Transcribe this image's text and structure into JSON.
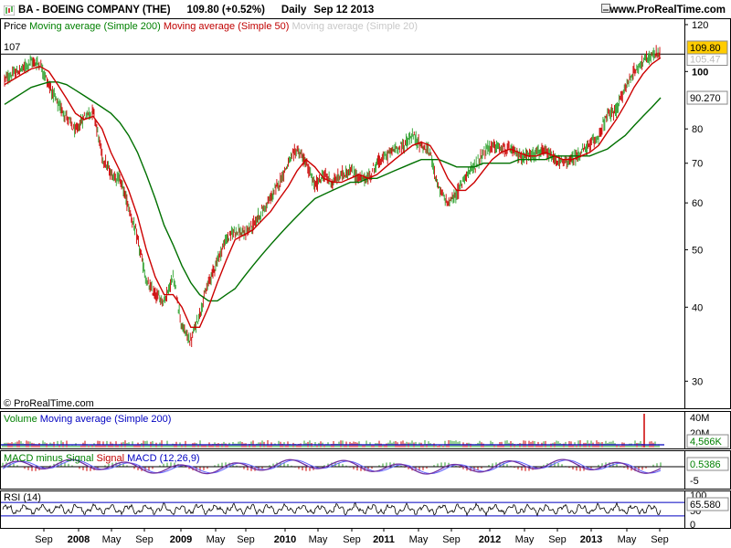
{
  "header": {
    "symbol_title": "BA - BOEING COMPANY (THE)",
    "price_change": "109.80 (+0.52%)",
    "period": "Daily",
    "date": "Sep 12 2013",
    "site": "www.ProRealTime.com"
  },
  "legends": {
    "price": "Price",
    "ma200": "Moving average (Simple 200)",
    "ma50": "Moving average (Simple 50)",
    "ma20": "Moving average (Simple 20)",
    "volume": "Volume",
    "volume_ma": "Moving average (Simple 200)",
    "macd_a": "MACD minus Signal",
    "macd_b": "Signal",
    "macd_c": "MACD (12,26,9)",
    "rsi": "RSI (14)"
  },
  "copyright": "© ProRealTime.com",
  "colors": {
    "up_bar": "#2ca02c",
    "down_bar": "#cc0000",
    "ma50": "#cc0000",
    "ma200": "#007000",
    "volume_ma": "#0000c0",
    "macd": "#7030a0",
    "signal": "#6060ff",
    "rsi": "#000000",
    "price_tag": "#ffcc00"
  },
  "chart_data": [
    {
      "type": "ohlc",
      "name": "price",
      "y_scale": "log",
      "ylim": [
        27,
        123
      ],
      "y_ticks": [
        "120",
        "100",
        "80",
        "70",
        "60",
        "50",
        "40",
        "30"
      ],
      "x_labels": [
        "Sep",
        "2008",
        "May",
        "Sep",
        "2009",
        "May",
        "Sep",
        "2010",
        "May",
        "Sep",
        "2011",
        "May",
        "Sep",
        "2012",
        "May",
        "Sep",
        "2013",
        "May",
        "Sep"
      ],
      "horizontal_line": {
        "label": "107",
        "value": 107
      },
      "last_price_label": "109.80",
      "ma50_last_label": "105.47",
      "ma200_last_label": "90.270",
      "x": [
        "2007-07",
        "2007-08",
        "2007-09",
        "2007-10",
        "2007-11",
        "2007-12",
        "2008-01",
        "2008-02",
        "2008-03",
        "2008-04",
        "2008-05",
        "2008-06",
        "2008-07",
        "2008-08",
        "2008-09",
        "2008-10",
        "2008-11",
        "2008-12",
        "2009-01",
        "2009-02",
        "2009-03",
        "2009-04",
        "2009-05",
        "2009-06",
        "2009-07",
        "2009-08",
        "2009-09",
        "2009-10",
        "2009-11",
        "2009-12",
        "2010-01",
        "2010-02",
        "2010-03",
        "2010-04",
        "2010-05",
        "2010-06",
        "2010-07",
        "2010-08",
        "2010-09",
        "2010-10",
        "2010-11",
        "2010-12",
        "2011-01",
        "2011-02",
        "2011-03",
        "2011-04",
        "2011-05",
        "2011-06",
        "2011-07",
        "2011-08",
        "2011-09",
        "2011-10",
        "2011-11",
        "2011-12",
        "2012-01",
        "2012-02",
        "2012-03",
        "2012-04",
        "2012-05",
        "2012-06",
        "2012-07",
        "2012-08",
        "2012-09",
        "2012-10",
        "2012-11",
        "2012-12",
        "2013-01",
        "2013-02",
        "2013-03",
        "2013-04",
        "2013-05",
        "2013-06",
        "2013-07",
        "2013-08",
        "2013-09"
      ],
      "close": [
        97,
        99,
        101,
        104,
        103,
        95,
        88,
        84,
        79,
        84,
        86,
        72,
        67,
        66,
        59,
        52,
        44,
        42,
        41,
        45,
        37,
        35,
        39,
        44,
        48,
        52,
        54,
        53,
        55,
        58,
        61,
        65,
        70,
        74,
        70,
        64,
        67,
        65,
        67,
        68,
        66,
        66,
        70,
        72,
        74,
        75,
        78,
        75,
        73,
        63,
        60,
        62,
        67,
        69,
        73,
        75,
        74,
        74,
        72,
        72,
        73,
        73,
        71,
        70,
        71,
        73,
        75,
        78,
        84,
        86,
        94,
        100,
        104,
        106,
        108
      ],
      "ma50": [
        95,
        97,
        99,
        101,
        102,
        100,
        95,
        90,
        85,
        83,
        84,
        80,
        73,
        68,
        63,
        57,
        50,
        45,
        42,
        42,
        40,
        37,
        37,
        40,
        44,
        48,
        52,
        53,
        54,
        56,
        58,
        61,
        64,
        68,
        71,
        69,
        66,
        65,
        65,
        66,
        67,
        66,
        67,
        69,
        71,
        73,
        75,
        76,
        75,
        71,
        66,
        63,
        63,
        65,
        68,
        71,
        73,
        74,
        73,
        72,
        72,
        73,
        72,
        71,
        71,
        72,
        73,
        75,
        79,
        83,
        88,
        94,
        99,
        103,
        105.5
      ],
      "ma200": [
        88,
        90,
        92,
        94,
        95,
        96,
        96,
        95,
        93,
        91,
        89,
        87,
        85,
        82,
        78,
        73,
        67,
        61,
        55,
        51,
        47,
        44,
        42,
        41,
        41,
        42,
        43,
        45,
        47,
        49,
        51,
        53,
        55,
        57,
        59,
        61,
        62,
        63,
        64,
        65,
        65,
        66,
        66,
        67,
        68,
        69,
        70,
        71,
        71,
        71,
        70,
        69,
        69,
        69,
        70,
        70,
        70,
        70,
        71,
        71,
        71,
        71,
        72,
        72,
        72,
        72,
        72,
        73,
        74,
        76,
        78,
        81,
        84,
        87,
        90.3
      ]
    },
    {
      "type": "bar",
      "name": "volume",
      "y_ticks": [
        "40M",
        "20M"
      ],
      "last_value_label": "4,566K",
      "spike_value_m": 38
    },
    {
      "type": "line",
      "name": "macd",
      "y_ticks": [
        "0",
        "-5"
      ],
      "last_value_label": "0.5386"
    },
    {
      "type": "line",
      "name": "rsi",
      "ylim": [
        0,
        100
      ],
      "y_ticks": [
        "100",
        "50",
        "0"
      ],
      "reference_lines": [
        70,
        30
      ],
      "last_value_label": "65.580"
    }
  ]
}
